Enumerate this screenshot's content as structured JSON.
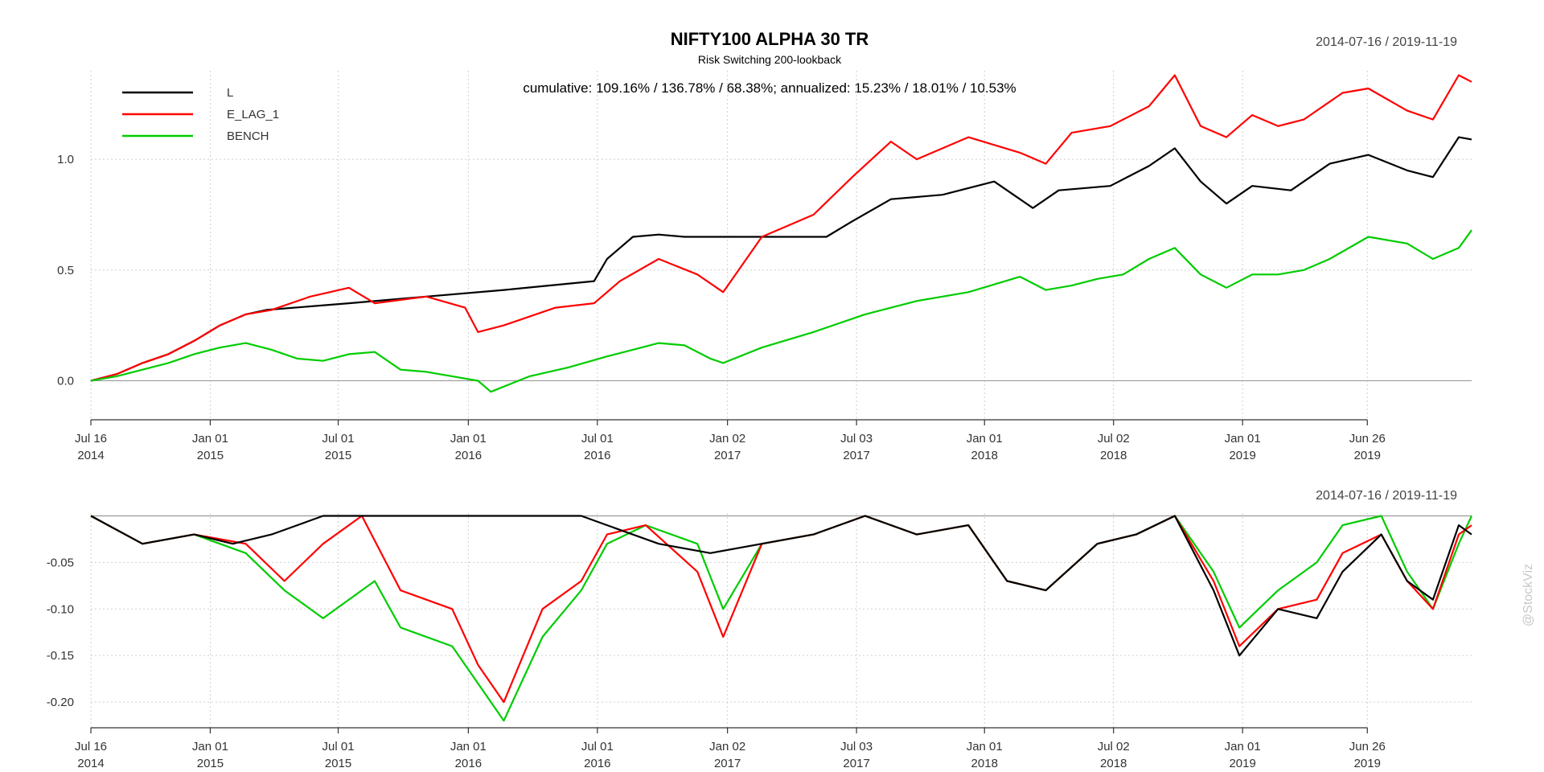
{
  "header": {
    "title": "NIFTY100 ALPHA 30 TR",
    "subtitle": "Risk Switching 200-lookback",
    "stats": "cumulative: 109.16% / 136.78% / 68.38%; annualized: 15.23% / 18.01% / 10.53%",
    "date_range_top": "2014-07-16 / 2019-11-19",
    "date_range_bottom": "2014-07-16 / 2019-11-19"
  },
  "watermark": "@StockViz",
  "x_ticks": [
    {
      "line1": "Jul 16",
      "line2": "2014",
      "t": 0
    },
    {
      "line1": "Jan 01",
      "line2": "2015",
      "t": 0.4625
    },
    {
      "line1": "Jul 01",
      "line2": "2015",
      "t": 0.9583
    },
    {
      "line1": "Jan 01",
      "line2": "2016",
      "t": 1.4625
    },
    {
      "line1": "Jul 01",
      "line2": "2016",
      "t": 1.9625
    },
    {
      "line1": "Jan 02",
      "line2": "2017",
      "t": 2.4667
    },
    {
      "line1": "Jul 03",
      "line2": "2017",
      "t": 2.9667
    },
    {
      "line1": "Jan 01",
      "line2": "2018",
      "t": 3.4625
    },
    {
      "line1": "Jul 02",
      "line2": "2018",
      "t": 3.9625
    },
    {
      "line1": "Jan 01",
      "line2": "2019",
      "t": 4.4625
    },
    {
      "line1": "Jun 26",
      "line2": "2019",
      "t": 4.9458
    }
  ],
  "chart_data": [
    {
      "type": "line",
      "name": "cumulative",
      "x_domain_years": [
        0,
        5.35
      ],
      "ylim": [
        -0.14,
        1.4
      ],
      "y_ticks": [
        0.0,
        0.5,
        1.0
      ],
      "y_tick_labels": [
        "0.0",
        "0.5",
        "1.0"
      ],
      "legend": {
        "position": "top-left"
      },
      "grid": true,
      "series": [
        {
          "name": "L",
          "color": "#000000",
          "points": [
            [
              0,
              0
            ],
            [
              0.1,
              0.03
            ],
            [
              0.2,
              0.08
            ],
            [
              0.3,
              0.12
            ],
            [
              0.4,
              0.18
            ],
            [
              0.5,
              0.25
            ],
            [
              0.6,
              0.3
            ],
            [
              0.68,
              0.32
            ],
            [
              1.0,
              0.35
            ],
            [
              1.3,
              0.38
            ],
            [
              1.6,
              0.41
            ],
            [
              1.95,
              0.45
            ],
            [
              2.0,
              0.55
            ],
            [
              2.1,
              0.65
            ],
            [
              2.2,
              0.66
            ],
            [
              2.3,
              0.65
            ],
            [
              2.5,
              0.65
            ],
            [
              2.7,
              0.65
            ],
            [
              2.85,
              0.65
            ],
            [
              2.95,
              0.72
            ],
            [
              3.1,
              0.82
            ],
            [
              3.3,
              0.84
            ],
            [
              3.5,
              0.9
            ],
            [
              3.65,
              0.78
            ],
            [
              3.75,
              0.86
            ],
            [
              3.95,
              0.88
            ],
            [
              4.1,
              0.97
            ],
            [
              4.2,
              1.05
            ],
            [
              4.3,
              0.9
            ],
            [
              4.4,
              0.8
            ],
            [
              4.5,
              0.88
            ],
            [
              4.65,
              0.86
            ],
            [
              4.8,
              0.98
            ],
            [
              4.95,
              1.02
            ],
            [
              5.1,
              0.95
            ],
            [
              5.2,
              0.92
            ],
            [
              5.3,
              1.1
            ],
            [
              5.35,
              1.09
            ]
          ]
        },
        {
          "name": "E_LAG_1",
          "color": "#ff0000",
          "points": [
            [
              0,
              0
            ],
            [
              0.1,
              0.03
            ],
            [
              0.2,
              0.08
            ],
            [
              0.3,
              0.12
            ],
            [
              0.4,
              0.18
            ],
            [
              0.5,
              0.25
            ],
            [
              0.6,
              0.3
            ],
            [
              0.7,
              0.32
            ],
            [
              0.85,
              0.38
            ],
            [
              1.0,
              0.42
            ],
            [
              1.1,
              0.35
            ],
            [
              1.3,
              0.38
            ],
            [
              1.45,
              0.33
            ],
            [
              1.5,
              0.22
            ],
            [
              1.6,
              0.25
            ],
            [
              1.8,
              0.33
            ],
            [
              1.95,
              0.35
            ],
            [
              2.05,
              0.45
            ],
            [
              2.2,
              0.55
            ],
            [
              2.35,
              0.48
            ],
            [
              2.45,
              0.4
            ],
            [
              2.6,
              0.65
            ],
            [
              2.8,
              0.75
            ],
            [
              2.95,
              0.92
            ],
            [
              3.1,
              1.08
            ],
            [
              3.2,
              1.0
            ],
            [
              3.4,
              1.1
            ],
            [
              3.6,
              1.03
            ],
            [
              3.7,
              0.98
            ],
            [
              3.8,
              1.12
            ],
            [
              3.95,
              1.15
            ],
            [
              4.1,
              1.24
            ],
            [
              4.2,
              1.38
            ],
            [
              4.3,
              1.15
            ],
            [
              4.4,
              1.1
            ],
            [
              4.5,
              1.2
            ],
            [
              4.6,
              1.15
            ],
            [
              4.7,
              1.18
            ],
            [
              4.85,
              1.3
            ],
            [
              4.95,
              1.32
            ],
            [
              5.1,
              1.22
            ],
            [
              5.2,
              1.18
            ],
            [
              5.3,
              1.38
            ],
            [
              5.35,
              1.35
            ]
          ]
        },
        {
          "name": "BENCH",
          "color": "#00cc00",
          "points": [
            [
              0,
              0
            ],
            [
              0.1,
              0.02
            ],
            [
              0.2,
              0.05
            ],
            [
              0.3,
              0.08
            ],
            [
              0.4,
              0.12
            ],
            [
              0.5,
              0.15
            ],
            [
              0.6,
              0.17
            ],
            [
              0.7,
              0.14
            ],
            [
              0.8,
              0.1
            ],
            [
              0.9,
              0.09
            ],
            [
              1.0,
              0.12
            ],
            [
              1.1,
              0.13
            ],
            [
              1.2,
              0.05
            ],
            [
              1.3,
              0.04
            ],
            [
              1.4,
              0.02
            ],
            [
              1.5,
              0.0
            ],
            [
              1.55,
              -0.05
            ],
            [
              1.7,
              0.02
            ],
            [
              1.85,
              0.06
            ],
            [
              2.0,
              0.11
            ],
            [
              2.1,
              0.14
            ],
            [
              2.2,
              0.17
            ],
            [
              2.3,
              0.16
            ],
            [
              2.4,
              0.1
            ],
            [
              2.45,
              0.08
            ],
            [
              2.6,
              0.15
            ],
            [
              2.8,
              0.22
            ],
            [
              3.0,
              0.3
            ],
            [
              3.2,
              0.36
            ],
            [
              3.4,
              0.4
            ],
            [
              3.6,
              0.47
            ],
            [
              3.7,
              0.41
            ],
            [
              3.8,
              0.43
            ],
            [
              3.9,
              0.46
            ],
            [
              4.0,
              0.48
            ],
            [
              4.1,
              0.55
            ],
            [
              4.2,
              0.6
            ],
            [
              4.3,
              0.48
            ],
            [
              4.4,
              0.42
            ],
            [
              4.5,
              0.48
            ],
            [
              4.6,
              0.48
            ],
            [
              4.7,
              0.5
            ],
            [
              4.8,
              0.55
            ],
            [
              4.95,
              0.65
            ],
            [
              5.1,
              0.62
            ],
            [
              5.2,
              0.55
            ],
            [
              5.3,
              0.6
            ],
            [
              5.35,
              0.68
            ]
          ]
        }
      ]
    },
    {
      "type": "line",
      "name": "drawdown",
      "x_domain_years": [
        0,
        5.35
      ],
      "ylim": [
        -0.225,
        0.003
      ],
      "y_ticks": [
        -0.05,
        -0.1,
        -0.15,
        -0.2
      ],
      "y_tick_labels": [
        "-0.05",
        "-0.10",
        "-0.15",
        "-0.20"
      ],
      "grid": true,
      "series": [
        {
          "name": "BENCH",
          "color": "#00cc00",
          "points": [
            [
              0,
              0
            ],
            [
              0.2,
              -0.03
            ],
            [
              0.4,
              -0.02
            ],
            [
              0.6,
              -0.04
            ],
            [
              0.75,
              -0.08
            ],
            [
              0.9,
              -0.11
            ],
            [
              1.1,
              -0.07
            ],
            [
              1.2,
              -0.12
            ],
            [
              1.4,
              -0.14
            ],
            [
              1.5,
              -0.18
            ],
            [
              1.6,
              -0.22
            ],
            [
              1.75,
              -0.13
            ],
            [
              1.9,
              -0.08
            ],
            [
              2.0,
              -0.03
            ],
            [
              2.15,
              -0.01
            ],
            [
              2.35,
              -0.03
            ],
            [
              2.45,
              -0.1
            ],
            [
              2.6,
              -0.03
            ],
            [
              2.8,
              -0.02
            ],
            [
              3.0,
              0
            ],
            [
              3.2,
              -0.02
            ],
            [
              3.4,
              -0.01
            ],
            [
              3.55,
              -0.07
            ],
            [
              3.7,
              -0.08
            ],
            [
              3.9,
              -0.03
            ],
            [
              4.05,
              -0.02
            ],
            [
              4.2,
              0
            ],
            [
              4.35,
              -0.06
            ],
            [
              4.45,
              -0.12
            ],
            [
              4.6,
              -0.08
            ],
            [
              4.75,
              -0.05
            ],
            [
              4.85,
              -0.01
            ],
            [
              5.0,
              0
            ],
            [
              5.1,
              -0.06
            ],
            [
              5.2,
              -0.1
            ],
            [
              5.3,
              -0.03
            ],
            [
              5.35,
              0
            ]
          ]
        },
        {
          "name": "E_LAG_1",
          "color": "#ff0000",
          "points": [
            [
              0,
              0
            ],
            [
              0.2,
              -0.03
            ],
            [
              0.4,
              -0.02
            ],
            [
              0.6,
              -0.03
            ],
            [
              0.75,
              -0.07
            ],
            [
              0.9,
              -0.03
            ],
            [
              1.05,
              0
            ],
            [
              1.2,
              -0.08
            ],
            [
              1.4,
              -0.1
            ],
            [
              1.5,
              -0.16
            ],
            [
              1.6,
              -0.2
            ],
            [
              1.75,
              -0.1
            ],
            [
              1.9,
              -0.07
            ],
            [
              2.0,
              -0.02
            ],
            [
              2.15,
              -0.01
            ],
            [
              2.35,
              -0.06
            ],
            [
              2.45,
              -0.13
            ],
            [
              2.6,
              -0.03
            ],
            [
              2.8,
              -0.02
            ],
            [
              3.0,
              0
            ],
            [
              3.2,
              -0.02
            ],
            [
              3.4,
              -0.01
            ],
            [
              3.55,
              -0.07
            ],
            [
              3.7,
              -0.08
            ],
            [
              3.9,
              -0.03
            ],
            [
              4.05,
              -0.02
            ],
            [
              4.2,
              0
            ],
            [
              4.35,
              -0.07
            ],
            [
              4.45,
              -0.14
            ],
            [
              4.6,
              -0.1
            ],
            [
              4.75,
              -0.09
            ],
            [
              4.85,
              -0.04
            ],
            [
              5.0,
              -0.02
            ],
            [
              5.1,
              -0.07
            ],
            [
              5.2,
              -0.1
            ],
            [
              5.3,
              -0.02
            ],
            [
              5.35,
              -0.01
            ]
          ]
        },
        {
          "name": "L",
          "color": "#000000",
          "points": [
            [
              0,
              0
            ],
            [
              0.2,
              -0.03
            ],
            [
              0.4,
              -0.02
            ],
            [
              0.55,
              -0.03
            ],
            [
              0.7,
              -0.02
            ],
            [
              0.8,
              -0.01
            ],
            [
              0.9,
              0
            ],
            [
              1.5,
              0
            ],
            [
              1.9,
              0
            ],
            [
              2.0,
              -0.01
            ],
            [
              2.2,
              -0.03
            ],
            [
              2.4,
              -0.04
            ],
            [
              2.6,
              -0.03
            ],
            [
              2.8,
              -0.02
            ],
            [
              3.0,
              0
            ],
            [
              3.2,
              -0.02
            ],
            [
              3.4,
              -0.01
            ],
            [
              3.55,
              -0.07
            ],
            [
              3.7,
              -0.08
            ],
            [
              3.9,
              -0.03
            ],
            [
              4.05,
              -0.02
            ],
            [
              4.2,
              0
            ],
            [
              4.35,
              -0.08
            ],
            [
              4.45,
              -0.15
            ],
            [
              4.6,
              -0.1
            ],
            [
              4.75,
              -0.11
            ],
            [
              4.85,
              -0.06
            ],
            [
              5.0,
              -0.02
            ],
            [
              5.1,
              -0.07
            ],
            [
              5.2,
              -0.09
            ],
            [
              5.3,
              -0.01
            ],
            [
              5.35,
              -0.02
            ]
          ]
        }
      ]
    }
  ]
}
